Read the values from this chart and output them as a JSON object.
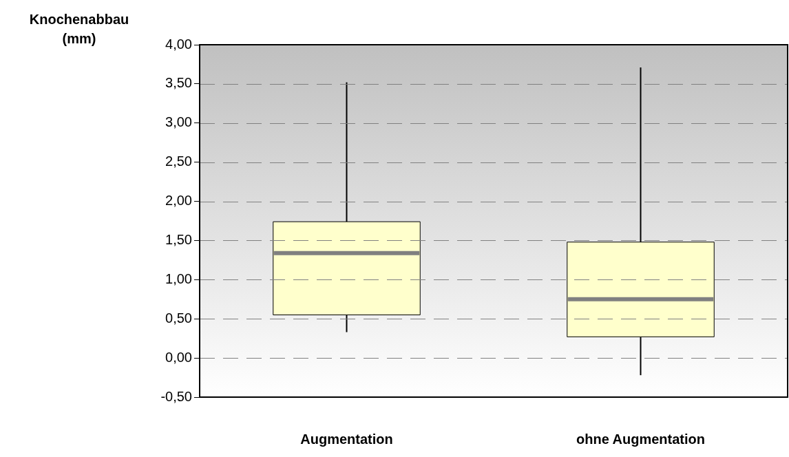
{
  "chart_data": {
    "type": "box",
    "ylabel": "Knochenabbau (mm)",
    "categories": [
      "Augmentation",
      "ohne Augmentation"
    ],
    "series": [
      {
        "color": "#ffffcc",
        "boxes": [
          {
            "low": 0.33,
            "q1": 0.55,
            "median": 1.34,
            "q3": 1.74,
            "high": 3.52
          },
          {
            "low": -0.22,
            "q1": 0.27,
            "median": 0.75,
            "q3": 1.48,
            "high": 3.71
          }
        ]
      }
    ],
    "ylim": [
      -0.5,
      4
    ],
    "yticks": [
      {
        "value": -0.5,
        "label": "-0,50"
      },
      {
        "value": 0,
        "label": "0,00"
      },
      {
        "value": 0.5,
        "label": "0,50"
      },
      {
        "value": 1,
        "label": "1,00"
      },
      {
        "value": 1.5,
        "label": "1,50"
      },
      {
        "value": 2,
        "label": "2,00"
      },
      {
        "value": 2.5,
        "label": "2,50"
      },
      {
        "value": 3,
        "label": "3,00"
      },
      {
        "value": 3.5,
        "label": "3,50"
      },
      {
        "value": 4,
        "label": "4,00"
      }
    ],
    "grid": "y"
  }
}
